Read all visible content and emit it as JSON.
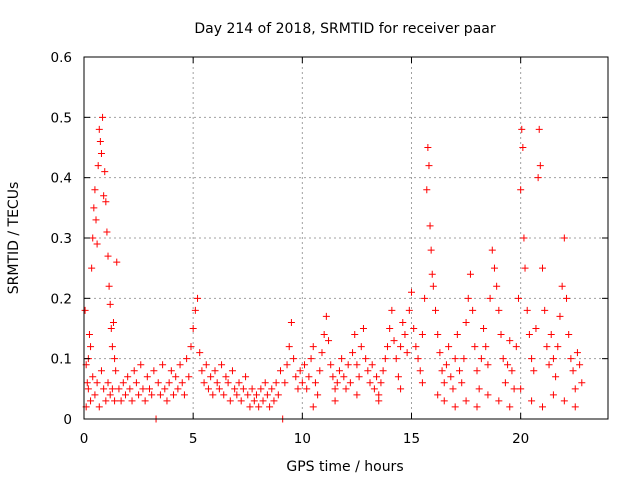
{
  "chart_data": {
    "type": "scatter",
    "title": "Day 214 of 2018, SRMTID for receiver paar",
    "xlabel": "GPS time / hours",
    "ylabel": "SRMTID / TECUs",
    "xlim": [
      0,
      24
    ],
    "ylim": [
      0,
      0.6
    ],
    "x_ticks": [
      0,
      5,
      10,
      15,
      20
    ],
    "x_tick_labels": [
      "0",
      "5",
      "10",
      "15",
      "20"
    ],
    "y_ticks": [
      0,
      0.1,
      0.2,
      0.3,
      0.4,
      0.5,
      0.6
    ],
    "y_tick_labels": [
      "0",
      "0.1",
      "0.2",
      "0.3",
      "0.4",
      "0.5",
      "0.6"
    ],
    "grid": true,
    "marker": "+",
    "color": "#ff0000",
    "series": [
      {
        "name": "SRMTID",
        "points": [
          [
            0.05,
            0.18
          ],
          [
            0.1,
            0.09
          ],
          [
            0.15,
            0.06
          ],
          [
            0.2,
            0.1
          ],
          [
            0.25,
            0.14
          ],
          [
            0.3,
            0.12
          ],
          [
            0.35,
            0.25
          ],
          [
            0.4,
            0.3
          ],
          [
            0.45,
            0.35
          ],
          [
            0.5,
            0.38
          ],
          [
            0.55,
            0.33
          ],
          [
            0.6,
            0.29
          ],
          [
            0.65,
            0.42
          ],
          [
            0.7,
            0.48
          ],
          [
            0.75,
            0.46
          ],
          [
            0.8,
            0.44
          ],
          [
            0.85,
            0.5
          ],
          [
            0.9,
            0.37
          ],
          [
            0.95,
            0.41
          ],
          [
            1.0,
            0.36
          ],
          [
            1.05,
            0.31
          ],
          [
            1.1,
            0.27
          ],
          [
            1.15,
            0.22
          ],
          [
            1.2,
            0.19
          ],
          [
            1.25,
            0.15
          ],
          [
            1.3,
            0.12
          ],
          [
            1.35,
            0.16
          ],
          [
            1.4,
            0.1
          ],
          [
            1.45,
            0.08
          ],
          [
            1.5,
            0.26
          ],
          [
            0.1,
            0.02
          ],
          [
            0.2,
            0.05
          ],
          [
            0.3,
            0.03
          ],
          [
            0.4,
            0.07
          ],
          [
            0.5,
            0.04
          ],
          [
            0.6,
            0.06
          ],
          [
            0.7,
            0.02
          ],
          [
            0.8,
            0.08
          ],
          [
            0.9,
            0.05
          ],
          [
            1.0,
            0.03
          ],
          [
            1.1,
            0.06
          ],
          [
            1.2,
            0.04
          ],
          [
            1.3,
            0.05
          ],
          [
            1.4,
            0.03
          ],
          [
            1.6,
            0.05
          ],
          [
            1.7,
            0.03
          ],
          [
            1.8,
            0.06
          ],
          [
            1.9,
            0.04
          ],
          [
            2.0,
            0.07
          ],
          [
            2.1,
            0.05
          ],
          [
            2.2,
            0.03
          ],
          [
            2.3,
            0.08
          ],
          [
            2.4,
            0.06
          ],
          [
            2.5,
            0.04
          ],
          [
            2.6,
            0.09
          ],
          [
            2.7,
            0.05
          ],
          [
            2.8,
            0.03
          ],
          [
            2.9,
            0.07
          ],
          [
            3.0,
            0.05
          ],
          [
            3.1,
            0.04
          ],
          [
            3.2,
            0.08
          ],
          [
            3.3,
            0.0
          ],
          [
            3.4,
            0.06
          ],
          [
            3.5,
            0.04
          ],
          [
            3.6,
            0.09
          ],
          [
            3.7,
            0.05
          ],
          [
            3.8,
            0.03
          ],
          [
            3.9,
            0.06
          ],
          [
            4.0,
            0.08
          ],
          [
            4.1,
            0.04
          ],
          [
            4.2,
            0.07
          ],
          [
            4.3,
            0.05
          ],
          [
            4.4,
            0.09
          ],
          [
            4.5,
            0.06
          ],
          [
            4.6,
            0.04
          ],
          [
            4.7,
            0.1
          ],
          [
            4.8,
            0.07
          ],
          [
            4.9,
            0.12
          ],
          [
            5.0,
            0.15
          ],
          [
            5.1,
            0.18
          ],
          [
            5.2,
            0.2
          ],
          [
            5.3,
            0.11
          ],
          [
            5.4,
            0.08
          ],
          [
            5.5,
            0.06
          ],
          [
            5.6,
            0.09
          ],
          [
            5.7,
            0.05
          ],
          [
            5.8,
            0.07
          ],
          [
            5.9,
            0.04
          ],
          [
            6.0,
            0.08
          ],
          [
            6.1,
            0.06
          ],
          [
            6.2,
            0.05
          ],
          [
            6.3,
            0.09
          ],
          [
            6.4,
            0.04
          ],
          [
            6.5,
            0.07
          ],
          [
            6.6,
            0.06
          ],
          [
            6.7,
            0.03
          ],
          [
            6.8,
            0.08
          ],
          [
            6.9,
            0.05
          ],
          [
            7.0,
            0.04
          ],
          [
            7.1,
            0.06
          ],
          [
            7.2,
            0.03
          ],
          [
            7.3,
            0.05
          ],
          [
            7.4,
            0.07
          ],
          [
            7.5,
            0.04
          ],
          [
            7.6,
            0.02
          ],
          [
            7.7,
            0.05
          ],
          [
            7.8,
            0.03
          ],
          [
            7.9,
            0.04
          ],
          [
            8.0,
            0.02
          ],
          [
            8.1,
            0.05
          ],
          [
            8.2,
            0.03
          ],
          [
            8.3,
            0.06
          ],
          [
            8.4,
            0.04
          ],
          [
            8.5,
            0.02
          ],
          [
            8.6,
            0.05
          ],
          [
            8.7,
            0.03
          ],
          [
            8.8,
            0.06
          ],
          [
            8.9,
            0.04
          ],
          [
            9.0,
            0.08
          ],
          [
            9.1,
            0.0
          ],
          [
            9.2,
            0.06
          ],
          [
            9.3,
            0.09
          ],
          [
            9.4,
            0.12
          ],
          [
            9.5,
            0.16
          ],
          [
            9.6,
            0.1
          ],
          [
            9.7,
            0.07
          ],
          [
            9.8,
            0.05
          ],
          [
            9.9,
            0.08
          ],
          [
            10.0,
            0.06
          ],
          [
            10.1,
            0.09
          ],
          [
            10.2,
            0.05
          ],
          [
            10.3,
            0.07
          ],
          [
            10.4,
            0.1
          ],
          [
            10.5,
            0.12
          ],
          [
            10.6,
            0.06
          ],
          [
            10.7,
            0.04
          ],
          [
            10.8,
            0.08
          ],
          [
            10.9,
            0.11
          ],
          [
            11.0,
            0.14
          ],
          [
            11.1,
            0.17
          ],
          [
            11.2,
            0.13
          ],
          [
            11.3,
            0.09
          ],
          [
            11.4,
            0.07
          ],
          [
            11.5,
            0.05
          ],
          [
            11.6,
            0.06
          ],
          [
            11.7,
            0.08
          ],
          [
            11.8,
            0.1
          ],
          [
            11.9,
            0.07
          ],
          [
            12.0,
            0.05
          ],
          [
            12.1,
            0.09
          ],
          [
            12.2,
            0.06
          ],
          [
            12.3,
            0.11
          ],
          [
            12.4,
            0.14
          ],
          [
            12.5,
            0.09
          ],
          [
            12.6,
            0.07
          ],
          [
            12.7,
            0.12
          ],
          [
            12.8,
            0.15
          ],
          [
            12.9,
            0.1
          ],
          [
            13.0,
            0.08
          ],
          [
            13.1,
            0.06
          ],
          [
            13.2,
            0.09
          ],
          [
            13.3,
            0.05
          ],
          [
            13.4,
            0.07
          ],
          [
            13.5,
            0.04
          ],
          [
            13.6,
            0.06
          ],
          [
            13.7,
            0.08
          ],
          [
            13.8,
            0.1
          ],
          [
            13.9,
            0.12
          ],
          [
            14.0,
            0.15
          ],
          [
            14.1,
            0.18
          ],
          [
            14.2,
            0.13
          ],
          [
            14.3,
            0.1
          ],
          [
            14.4,
            0.07
          ],
          [
            14.5,
            0.12
          ],
          [
            14.6,
            0.16
          ],
          [
            14.7,
            0.14
          ],
          [
            14.8,
            0.11
          ],
          [
            14.9,
            0.18
          ],
          [
            15.0,
            0.21
          ],
          [
            15.1,
            0.15
          ],
          [
            15.2,
            0.12
          ],
          [
            15.3,
            0.1
          ],
          [
            15.4,
            0.08
          ],
          [
            15.5,
            0.14
          ],
          [
            15.6,
            0.2
          ],
          [
            15.7,
            0.38
          ],
          [
            15.75,
            0.45
          ],
          [
            15.8,
            0.42
          ],
          [
            15.85,
            0.32
          ],
          [
            15.9,
            0.28
          ],
          [
            15.95,
            0.24
          ],
          [
            16.0,
            0.22
          ],
          [
            16.1,
            0.18
          ],
          [
            16.2,
            0.14
          ],
          [
            16.3,
            0.11
          ],
          [
            16.4,
            0.08
          ],
          [
            16.5,
            0.06
          ],
          [
            16.6,
            0.09
          ],
          [
            16.7,
            0.12
          ],
          [
            16.8,
            0.07
          ],
          [
            16.9,
            0.05
          ],
          [
            17.0,
            0.1
          ],
          [
            17.1,
            0.14
          ],
          [
            17.2,
            0.08
          ],
          [
            17.3,
            0.06
          ],
          [
            17.4,
            0.1
          ],
          [
            17.5,
            0.16
          ],
          [
            17.6,
            0.2
          ],
          [
            17.7,
            0.24
          ],
          [
            17.8,
            0.18
          ],
          [
            17.9,
            0.12
          ],
          [
            18.0,
            0.08
          ],
          [
            18.1,
            0.05
          ],
          [
            18.2,
            0.1
          ],
          [
            18.3,
            0.15
          ],
          [
            18.4,
            0.12
          ],
          [
            18.5,
            0.09
          ],
          [
            18.6,
            0.2
          ],
          [
            18.7,
            0.28
          ],
          [
            18.8,
            0.25
          ],
          [
            18.9,
            0.22
          ],
          [
            19.0,
            0.18
          ],
          [
            19.1,
            0.14
          ],
          [
            19.2,
            0.1
          ],
          [
            19.3,
            0.06
          ],
          [
            19.4,
            0.09
          ],
          [
            19.5,
            0.13
          ],
          [
            19.6,
            0.08
          ],
          [
            19.7,
            0.05
          ],
          [
            19.8,
            0.12
          ],
          [
            19.9,
            0.2
          ],
          [
            20.0,
            0.38
          ],
          [
            20.05,
            0.48
          ],
          [
            20.1,
            0.45
          ],
          [
            20.15,
            0.3
          ],
          [
            20.2,
            0.25
          ],
          [
            20.3,
            0.18
          ],
          [
            20.4,
            0.14
          ],
          [
            20.5,
            0.1
          ],
          [
            20.6,
            0.08
          ],
          [
            20.7,
            0.15
          ],
          [
            20.8,
            0.4
          ],
          [
            20.85,
            0.48
          ],
          [
            20.9,
            0.42
          ],
          [
            21.0,
            0.25
          ],
          [
            21.1,
            0.18
          ],
          [
            21.2,
            0.12
          ],
          [
            21.3,
            0.09
          ],
          [
            21.4,
            0.14
          ],
          [
            21.5,
            0.1
          ],
          [
            21.6,
            0.07
          ],
          [
            21.7,
            0.12
          ],
          [
            21.8,
            0.17
          ],
          [
            21.9,
            0.22
          ],
          [
            22.0,
            0.3
          ],
          [
            22.1,
            0.2
          ],
          [
            22.2,
            0.14
          ],
          [
            22.3,
            0.1
          ],
          [
            22.4,
            0.08
          ],
          [
            22.5,
            0.05
          ],
          [
            22.6,
            0.11
          ],
          [
            22.7,
            0.09
          ],
          [
            22.8,
            0.06
          ],
          [
            16.2,
            0.04
          ],
          [
            16.5,
            0.03
          ],
          [
            17.0,
            0.02
          ],
          [
            17.5,
            0.03
          ],
          [
            18.0,
            0.02
          ],
          [
            18.5,
            0.04
          ],
          [
            19.0,
            0.03
          ],
          [
            19.5,
            0.02
          ],
          [
            20.0,
            0.05
          ],
          [
            20.5,
            0.03
          ],
          [
            21.0,
            0.02
          ],
          [
            21.5,
            0.04
          ],
          [
            22.0,
            0.03
          ],
          [
            22.5,
            0.02
          ],
          [
            15.5,
            0.06
          ],
          [
            14.5,
            0.05
          ],
          [
            13.5,
            0.03
          ],
          [
            12.5,
            0.04
          ],
          [
            11.5,
            0.03
          ],
          [
            10.5,
            0.02
          ]
        ]
      }
    ]
  }
}
